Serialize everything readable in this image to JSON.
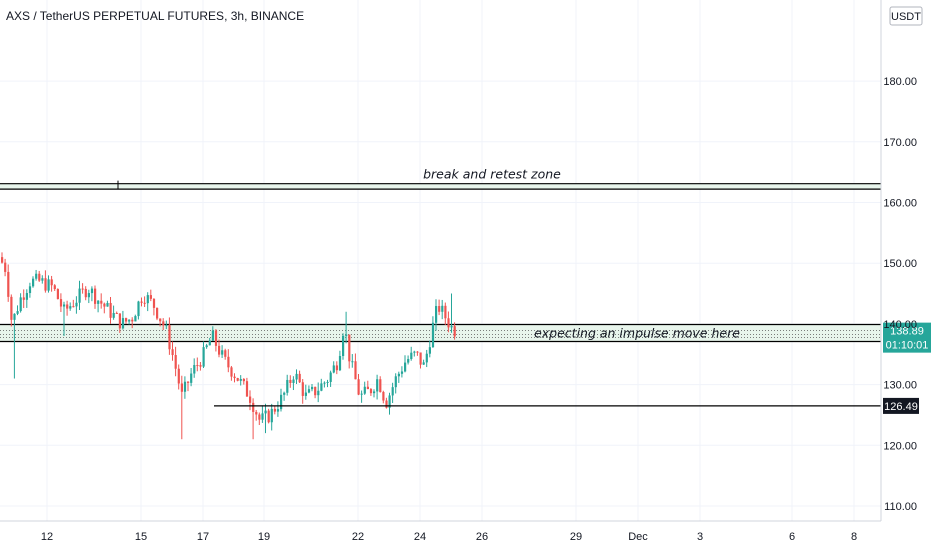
{
  "chart_data": {
    "type": "candlestick",
    "title": "AXS / TetherUS PERPETUAL FUTURES, 3h, BINANCE",
    "currency_label": "USDT",
    "y_axis": {
      "range": [
        105,
        190
      ],
      "ticks": [
        "110.00",
        "120.00",
        "130.00",
        "140.00",
        "150.00",
        "160.00",
        "170.00",
        "180.00"
      ],
      "position": "right"
    },
    "x_axis": {
      "ticks": [
        "12",
        "15",
        "17",
        "19",
        "22",
        "24",
        "26",
        "29",
        "Dec",
        "3",
        "6",
        "8"
      ]
    },
    "last_price": {
      "value": "138.89",
      "countdown": "01:10:01",
      "color": "#26a69a"
    },
    "support_level": {
      "value": "126.49"
    },
    "zones": [
      {
        "label": "break and retest zone",
        "low": 162.2,
        "high": 163.1
      },
      {
        "label": "expecting an impulse move here",
        "low": 137.1,
        "high": 139.9
      }
    ],
    "colors": {
      "up": "#26a69a",
      "down": "#ef5350",
      "grid": "#f0f3fa",
      "zone_line": "#000000",
      "zone_fill": "#e8f5ec"
    }
  }
}
